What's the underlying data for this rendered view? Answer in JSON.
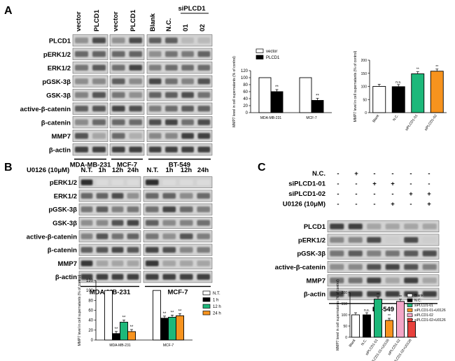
{
  "panels": {
    "a": "A",
    "b": "B",
    "c": "C"
  },
  "blotA": {
    "columns": [
      "vector",
      "PLCD1",
      "vector",
      "PLCD1",
      "Blank",
      "N.C.",
      "01",
      "02"
    ],
    "group_label": "siPLCD1",
    "rows": [
      "PLCD1",
      "pERK1/2",
      "ERK1/2",
      "pGSK-3β",
      "GSK-3β",
      "active-β-catenin",
      "β-catenin",
      "MMP7",
      "β-actin"
    ],
    "cells": [
      "MDA-MB-231",
      "MCF-7",
      "BT-549"
    ]
  },
  "blotB": {
    "treatment": "U0126 (10μM)",
    "columns": [
      "N.T.",
      "1h",
      "12h",
      "24h",
      "N.T.",
      "1h",
      "12h",
      "24h"
    ],
    "rows": [
      "pERK1/2",
      "ERK1/2",
      "pGSK-3β",
      "GSK-3β",
      "active-β-catenin",
      "β-catenin",
      "MMP7",
      "β-actin"
    ],
    "cells": [
      "MDA-MB-231",
      "MCF-7"
    ]
  },
  "blotC": {
    "conditions": [
      "N.C.",
      "siPLCD1-01",
      "siPLCD1-02",
      "U0126 (10μM)"
    ],
    "signs": [
      [
        "-",
        "+",
        "-",
        "-",
        "-",
        "-"
      ],
      [
        "-",
        "-",
        "+",
        "+",
        "-",
        "-"
      ],
      [
        "-",
        "-",
        "-",
        "-",
        "+",
        "+"
      ],
      [
        "-",
        "-",
        "-",
        "+",
        "-",
        "+"
      ]
    ],
    "rows": [
      "PLCD1",
      "pERK1/2",
      "pGSK-3β",
      "active-β-catenin",
      "MMP7",
      "β-actin"
    ],
    "cells": [
      "BT-549"
    ]
  },
  "chart_data": [
    {
      "type": "bar",
      "ylabel": "MMP7 level in cell supernatants (% of control)",
      "ylim": [
        0,
        120
      ],
      "yticks": [
        0,
        20,
        40,
        60,
        80,
        100,
        120
      ],
      "categories": [
        "MDA-MB-231",
        "MCF-7"
      ],
      "series": [
        {
          "name": "vector",
          "values": [
            100,
            100
          ],
          "color": "#ffffff"
        },
        {
          "name": "PLCD1",
          "values": [
            60,
            35
          ],
          "color": "#000000"
        }
      ],
      "annotations": [
        "**",
        "**"
      ],
      "legend": "top-right"
    },
    {
      "type": "bar",
      "ylabel": "MMP7 level in cell supernatants (% of control)",
      "ylim": [
        0,
        200
      ],
      "yticks": [
        0,
        50,
        100,
        150,
        200
      ],
      "categories": [
        "Blank",
        "N.C.",
        "siPLCD1-01",
        "siPLCD1-02"
      ],
      "values": [
        100,
        99,
        148,
        158
      ],
      "colors": [
        "#ffffff",
        "#000000",
        "#1db87a",
        "#f7931e"
      ],
      "annotations": [
        "",
        "n.s.",
        "**",
        "**"
      ]
    },
    {
      "type": "bar",
      "ylabel": "MMP7 level in cell supernatants (% of control)",
      "ylim": [
        0,
        120
      ],
      "yticks": [
        0,
        20,
        40,
        60,
        80,
        100,
        120
      ],
      "categories": [
        "MDA-MB-231",
        "MCF-7"
      ],
      "series": [
        {
          "name": "N.T.",
          "values": [
            100,
            100
          ],
          "color": "#ffffff"
        },
        {
          "name": "1 h",
          "values": [
            13,
            44
          ],
          "color": "#000000"
        },
        {
          "name": "12 h",
          "values": [
            36,
            46
          ],
          "color": "#1db87a"
        },
        {
          "name": "24 h",
          "values": [
            17,
            49
          ],
          "color": "#f7931e"
        }
      ],
      "annotations": [
        "**",
        "**",
        "**",
        "**",
        "**",
        "**"
      ],
      "legend": "top-right"
    },
    {
      "type": "bar",
      "ylabel": "MMP7 level in cell supernatants (% of control)",
      "ylim": [
        0,
        200
      ],
      "yticks": [
        0,
        50,
        100,
        150,
        200
      ],
      "categories": [
        "Blank",
        "N.C.",
        "siPLCD1-01",
        "siPLCD1-01+U0126",
        "siPLCD1-02",
        "siPLCD1-02+U0126"
      ],
      "values": [
        100,
        100,
        170,
        75,
        160,
        70
      ],
      "colors": [
        "#ffffff",
        "#000000",
        "#1db87a",
        "#f7931e",
        "#f4a6c7",
        "#e8413c"
      ],
      "annotations": [
        "",
        "n.s.",
        "**",
        "**",
        "**",
        "**"
      ],
      "legend": "right"
    }
  ]
}
